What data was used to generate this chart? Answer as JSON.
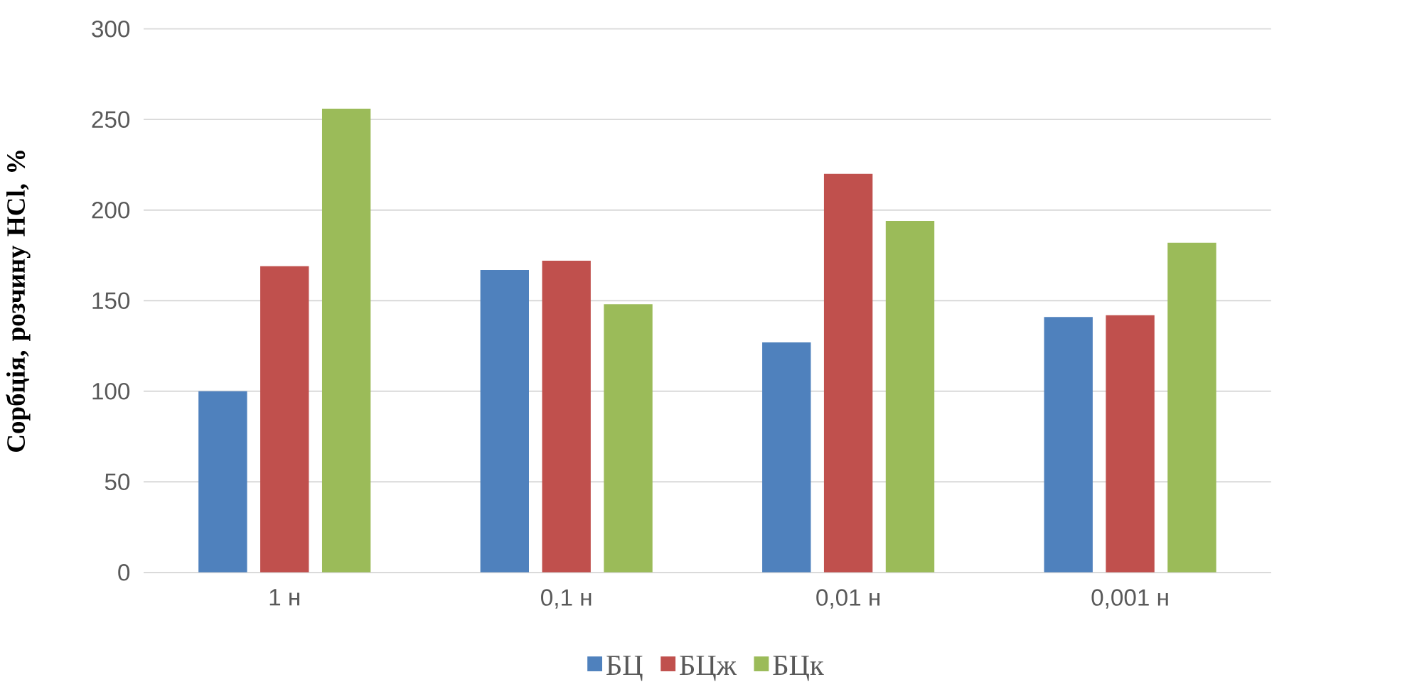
{
  "chart_data": {
    "type": "bar",
    "ylabel": "Сорбція, розчину HCl, %",
    "categories": [
      "1 н",
      "0,1 н",
      "0,01 н",
      "0,001 н"
    ],
    "series": [
      {
        "name": "БЦ",
        "color": "#4f81bd",
        "values": [
          100,
          167,
          127,
          141
        ]
      },
      {
        "name": "БЦж",
        "color": "#c0504d",
        "values": [
          169,
          172,
          220,
          142
        ]
      },
      {
        "name": "БЦк",
        "color": "#9bbb59",
        "values": [
          256,
          148,
          194,
          182
        ]
      }
    ],
    "ylim": [
      0,
      300
    ],
    "yticks": [
      0,
      50,
      100,
      150,
      200,
      250,
      300
    ],
    "grid": "y",
    "legend": "bottom"
  }
}
